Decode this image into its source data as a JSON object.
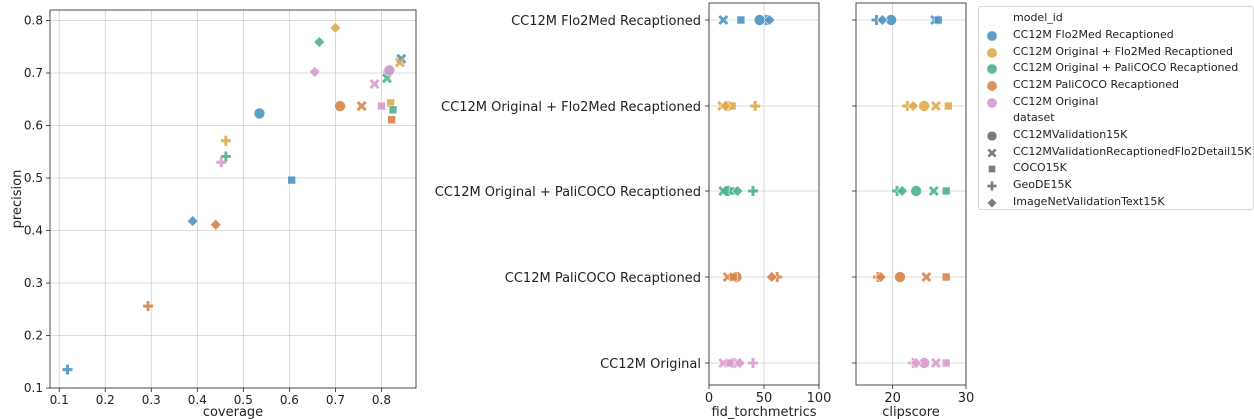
{
  "colors": {
    "CC12M Flo2Med Recaptioned": "#4c95c4",
    "CC12M Original + Flo2Med Recaptioned": "#e0aa4b",
    "CC12M Original + PaliCOCO Recaptioned": "#4fb293",
    "CC12M PaliCOCO Recaptioned": "#d7854a",
    "CC12M Original": "#d99ccd",
    "grey": "#6e6e6e"
  },
  "markers": {
    "CC12MValidation15K": "circle",
    "CC12MValidationRecaptionedFlo2Detail15K": "x",
    "COCO15K": "square",
    "GeoDE15K": "plus",
    "ImageNetValidationText15K": "diamond"
  },
  "legend": {
    "model_title": "model_id",
    "models": [
      "CC12M Flo2Med Recaptioned",
      "CC12M Original + Flo2Med Recaptioned",
      "CC12M Original + PaliCOCO Recaptioned",
      "CC12M PaliCOCO Recaptioned",
      "CC12M Original"
    ],
    "dataset_title": "dataset",
    "datasets": [
      "CC12MValidation15K",
      "CC12MValidationRecaptionedFlo2Detail15K",
      "COCO15K",
      "GeoDE15K",
      "ImageNetValidationText15K"
    ]
  },
  "chart_data": [
    {
      "type": "scatter",
      "title": "",
      "xlabel": "coverage",
      "ylabel": "precision",
      "xlim": [
        0.08,
        0.875
      ],
      "ylim": [
        0.1,
        0.82
      ],
      "xticks": [
        "0.1",
        "0.2",
        "0.3",
        "0.4",
        "0.5",
        "0.6",
        "0.7",
        "0.8"
      ],
      "yticks": [
        "0.1",
        "0.2",
        "0.3",
        "0.4",
        "0.5",
        "0.6",
        "0.7",
        "0.8"
      ],
      "grid": true,
      "points": [
        {
          "model": "CC12M Flo2Med Recaptioned",
          "dataset": "CC12MValidation15K",
          "x": 0.535,
          "y": 0.623
        },
        {
          "model": "CC12M Flo2Med Recaptioned",
          "dataset": "CC12MValidationRecaptionedFlo2Detail15K",
          "x": 0.843,
          "y": 0.727
        },
        {
          "model": "CC12M Flo2Med Recaptioned",
          "dataset": "COCO15K",
          "x": 0.605,
          "y": 0.496
        },
        {
          "model": "CC12M Flo2Med Recaptioned",
          "dataset": "GeoDE15K",
          "x": 0.118,
          "y": 0.135
        },
        {
          "model": "CC12M Flo2Med Recaptioned",
          "dataset": "ImageNetValidationText15K",
          "x": 0.39,
          "y": 0.418
        },
        {
          "model": "CC12M Original + Flo2Med Recaptioned",
          "dataset": "CC12MValidation15K",
          "x": 0.818,
          "y": 0.706
        },
        {
          "model": "CC12M Original + Flo2Med Recaptioned",
          "dataset": "CC12MValidationRecaptionedFlo2Detail15K",
          "x": 0.84,
          "y": 0.72
        },
        {
          "model": "CC12M Original + Flo2Med Recaptioned",
          "dataset": "COCO15K",
          "x": 0.82,
          "y": 0.643
        },
        {
          "model": "CC12M Original + Flo2Med Recaptioned",
          "dataset": "GeoDE15K",
          "x": 0.462,
          "y": 0.571
        },
        {
          "model": "CC12M Original + Flo2Med Recaptioned",
          "dataset": "ImageNetValidationText15K",
          "x": 0.7,
          "y": 0.786
        },
        {
          "model": "CC12M Original + PaliCOCO Recaptioned",
          "dataset": "CC12MValidation15K",
          "x": 0.815,
          "y": 0.703
        },
        {
          "model": "CC12M Original + PaliCOCO Recaptioned",
          "dataset": "CC12MValidationRecaptionedFlo2Detail15K",
          "x": 0.812,
          "y": 0.69
        },
        {
          "model": "CC12M Original + PaliCOCO Recaptioned",
          "dataset": "COCO15K",
          "x": 0.825,
          "y": 0.63
        },
        {
          "model": "CC12M Original + PaliCOCO Recaptioned",
          "dataset": "GeoDE15K",
          "x": 0.462,
          "y": 0.541
        },
        {
          "model": "CC12M Original + PaliCOCO Recaptioned",
          "dataset": "ImageNetValidationText15K",
          "x": 0.665,
          "y": 0.759
        },
        {
          "model": "CC12M PaliCOCO Recaptioned",
          "dataset": "CC12MValidation15K",
          "x": 0.71,
          "y": 0.637
        },
        {
          "model": "CC12M PaliCOCO Recaptioned",
          "dataset": "CC12MValidationRecaptionedFlo2Detail15K",
          "x": 0.757,
          "y": 0.637
        },
        {
          "model": "CC12M PaliCOCO Recaptioned",
          "dataset": "COCO15K",
          "x": 0.822,
          "y": 0.611
        },
        {
          "model": "CC12M PaliCOCO Recaptioned",
          "dataset": "GeoDE15K",
          "x": 0.293,
          "y": 0.256
        },
        {
          "model": "CC12M PaliCOCO Recaptioned",
          "dataset": "ImageNetValidationText15K",
          "x": 0.44,
          "y": 0.411
        },
        {
          "model": "CC12M Original",
          "dataset": "CC12MValidation15K",
          "x": 0.817,
          "y": 0.705
        },
        {
          "model": "CC12M Original",
          "dataset": "CC12MValidationRecaptionedFlo2Detail15K",
          "x": 0.785,
          "y": 0.679
        },
        {
          "model": "CC12M Original",
          "dataset": "COCO15K",
          "x": 0.8,
          "y": 0.637
        },
        {
          "model": "CC12M Original",
          "dataset": "GeoDE15K",
          "x": 0.452,
          "y": 0.53
        },
        {
          "model": "CC12M Original",
          "dataset": "ImageNetValidationText15K",
          "x": 0.655,
          "y": 0.702
        }
      ]
    },
    {
      "type": "scatter",
      "title": "",
      "xlabel": "fid_torchmetrics",
      "ylabel": "",
      "xlim": [
        0,
        100
      ],
      "xticks": [
        "0",
        "50",
        "100"
      ],
      "categories": [
        "CC12M Flo2Med Recaptioned",
        "CC12M Original + Flo2Med Recaptioned",
        "CC12M Original + PaliCOCO Recaptioned",
        "CC12M PaliCOCO Recaptioned",
        "CC12M Original"
      ],
      "grid": true,
      "points": [
        {
          "model": "CC12M Flo2Med Recaptioned",
          "dataset": "CC12MValidation15K",
          "x": 46
        },
        {
          "model": "CC12M Flo2Med Recaptioned",
          "dataset": "CC12MValidationRecaptionedFlo2Detail15K",
          "x": 13
        },
        {
          "model": "CC12M Flo2Med Recaptioned",
          "dataset": "COCO15K",
          "x": 29
        },
        {
          "model": "CC12M Flo2Med Recaptioned",
          "dataset": "GeoDE15K",
          "x": 52
        },
        {
          "model": "CC12M Flo2Med Recaptioned",
          "dataset": "ImageNetValidationText15K",
          "x": 55
        },
        {
          "model": "CC12M Original + Flo2Med Recaptioned",
          "dataset": "CC12MValidation15K",
          "x": 17
        },
        {
          "model": "CC12M Original + Flo2Med Recaptioned",
          "dataset": "CC12MValidationRecaptionedFlo2Detail15K",
          "x": 12
        },
        {
          "model": "CC12M Original + Flo2Med Recaptioned",
          "dataset": "COCO15K",
          "x": 21
        },
        {
          "model": "CC12M Original + Flo2Med Recaptioned",
          "dataset": "GeoDE15K",
          "x": 42
        },
        {
          "model": "CC12M Original + Flo2Med Recaptioned",
          "dataset": "ImageNetValidationText15K",
          "x": 15
        },
        {
          "model": "CC12M Original + PaliCOCO Recaptioned",
          "dataset": "CC12MValidation15K",
          "x": 17
        },
        {
          "model": "CC12M Original + PaliCOCO Recaptioned",
          "dataset": "CC12MValidationRecaptionedFlo2Detail15K",
          "x": 13
        },
        {
          "model": "CC12M Original + PaliCOCO Recaptioned",
          "dataset": "COCO15K",
          "x": 22
        },
        {
          "model": "CC12M Original + PaliCOCO Recaptioned",
          "dataset": "GeoDE15K",
          "x": 40
        },
        {
          "model": "CC12M Original + PaliCOCO Recaptioned",
          "dataset": "ImageNetValidationText15K",
          "x": 26
        },
        {
          "model": "CC12M PaliCOCO Recaptioned",
          "dataset": "CC12MValidation15K",
          "x": 25
        },
        {
          "model": "CC12M PaliCOCO Recaptioned",
          "dataset": "CC12MValidationRecaptionedFlo2Detail15K",
          "x": 17
        },
        {
          "model": "CC12M PaliCOCO Recaptioned",
          "dataset": "COCO15K",
          "x": 22
        },
        {
          "model": "CC12M PaliCOCO Recaptioned",
          "dataset": "GeoDE15K",
          "x": 62
        },
        {
          "model": "CC12M PaliCOCO Recaptioned",
          "dataset": "ImageNetValidationText15K",
          "x": 57
        },
        {
          "model": "CC12M Original",
          "dataset": "CC12MValidation15K",
          "x": 22
        },
        {
          "model": "CC12M Original",
          "dataset": "CC12MValidationRecaptionedFlo2Detail15K",
          "x": 13
        },
        {
          "model": "CC12M Original",
          "dataset": "COCO15K",
          "x": 19
        },
        {
          "model": "CC12M Original",
          "dataset": "GeoDE15K",
          "x": 40
        },
        {
          "model": "CC12M Original",
          "dataset": "ImageNetValidationText15K",
          "x": 28
        }
      ]
    },
    {
      "type": "scatter",
      "title": "",
      "xlabel": "clipscore",
      "ylabel": "",
      "xlim": [
        15,
        30
      ],
      "xticks": [
        "20",
        "30"
      ],
      "grid": true,
      "points": [
        {
          "model": "CC12M Flo2Med Recaptioned",
          "dataset": "CC12MValidation15K",
          "x": 19.8
        },
        {
          "model": "CC12M Flo2Med Recaptioned",
          "dataset": "CC12MValidationRecaptionedFlo2Detail15K",
          "x": 25.8
        },
        {
          "model": "CC12M Flo2Med Recaptioned",
          "dataset": "COCO15K",
          "x": 26.2
        },
        {
          "model": "CC12M Flo2Med Recaptioned",
          "dataset": "GeoDE15K",
          "x": 17.8
        },
        {
          "model": "CC12M Flo2Med Recaptioned",
          "dataset": "ImageNetValidationText15K",
          "x": 18.6
        },
        {
          "model": "CC12M Original + Flo2Med Recaptioned",
          "dataset": "CC12MValidation15K",
          "x": 24.3
        },
        {
          "model": "CC12M Original + Flo2Med Recaptioned",
          "dataset": "CC12MValidationRecaptionedFlo2Detail15K",
          "x": 25.9
        },
        {
          "model": "CC12M Original + Flo2Med Recaptioned",
          "dataset": "COCO15K",
          "x": 27.6
        },
        {
          "model": "CC12M Original + Flo2Med Recaptioned",
          "dataset": "GeoDE15K",
          "x": 22.0
        },
        {
          "model": "CC12M Original + Flo2Med Recaptioned",
          "dataset": "ImageNetValidationText15K",
          "x": 22.8
        },
        {
          "model": "CC12M Original + PaliCOCO Recaptioned",
          "dataset": "CC12MValidation15K",
          "x": 23.2
        },
        {
          "model": "CC12M Original + PaliCOCO Recaptioned",
          "dataset": "CC12MValidationRecaptionedFlo2Detail15K",
          "x": 25.6
        },
        {
          "model": "CC12M Original + PaliCOCO Recaptioned",
          "dataset": "COCO15K",
          "x": 27.3
        },
        {
          "model": "CC12M Original + PaliCOCO Recaptioned",
          "dataset": "GeoDE15K",
          "x": 20.6
        },
        {
          "model": "CC12M Original + PaliCOCO Recaptioned",
          "dataset": "ImageNetValidationText15K",
          "x": 21.3
        },
        {
          "model": "CC12M PaliCOCO Recaptioned",
          "dataset": "CC12MValidation15K",
          "x": 21.0
        },
        {
          "model": "CC12M PaliCOCO Recaptioned",
          "dataset": "CC12MValidationRecaptionedFlo2Detail15K",
          "x": 24.6
        },
        {
          "model": "CC12M PaliCOCO Recaptioned",
          "dataset": "COCO15K",
          "x": 27.3
        },
        {
          "model": "CC12M PaliCOCO Recaptioned",
          "dataset": "GeoDE15K",
          "x": 18.0
        },
        {
          "model": "CC12M PaliCOCO Recaptioned",
          "dataset": "ImageNetValidationText15K",
          "x": 18.4
        },
        {
          "model": "CC12M Original",
          "dataset": "CC12MValidation15K",
          "x": 24.3
        },
        {
          "model": "CC12M Original",
          "dataset": "CC12MValidationRecaptionedFlo2Detail15K",
          "x": 25.9
        },
        {
          "model": "CC12M Original",
          "dataset": "COCO15K",
          "x": 27.3
        },
        {
          "model": "CC12M Original",
          "dataset": "GeoDE15K",
          "x": 22.8
        },
        {
          "model": "CC12M Original",
          "dataset": "ImageNetValidationText15K",
          "x": 23.2
        }
      ]
    }
  ]
}
